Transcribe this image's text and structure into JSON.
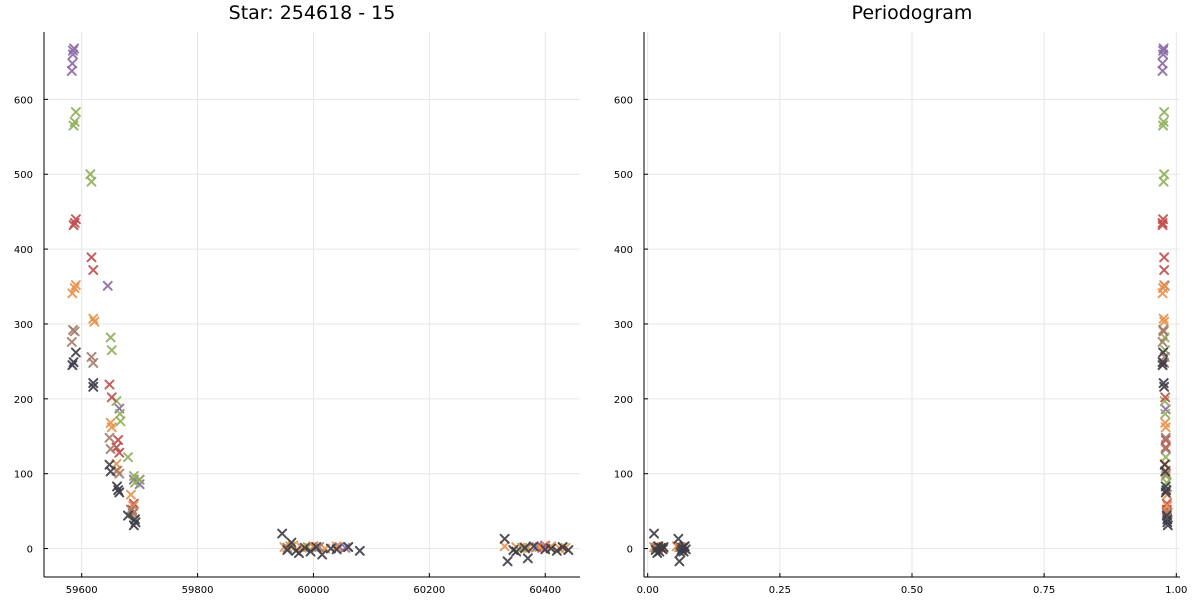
{
  "palette": {
    "purple": "#8a69a8",
    "green": "#8fb05a",
    "red": "#c14c4c",
    "orange": "#e8914a",
    "brown": "#a57c6a",
    "dark": "#3c3c46"
  },
  "chart_data": [
    {
      "type": "scatter",
      "title": "Star: 254618 - 15",
      "xlabel": "",
      "ylabel": "",
      "xlim": [
        59535,
        60460
      ],
      "ylim": [
        -38,
        690
      ],
      "xticks": [
        59600,
        59800,
        60000,
        60200,
        60400
      ],
      "xtick_labels": [
        "59600",
        "59800",
        "60000",
        "60200",
        "60400"
      ],
      "yticks": [
        0,
        100,
        200,
        300,
        400,
        500,
        600
      ],
      "ytick_labels": [
        "0",
        "100",
        "200",
        "300",
        "400",
        "500",
        "600"
      ],
      "grid": true,
      "marker": "x",
      "series": [
        {
          "color": "purple",
          "points": [
            [
              59585,
              665
            ],
            [
              59587,
              668
            ],
            [
              59585,
              660
            ],
            [
              59584,
              648
            ],
            [
              59583,
              638
            ],
            [
              59645,
              351
            ],
            [
              59690,
              92
            ],
            [
              59700,
              86
            ],
            [
              59700,
              92
            ],
            [
              59665,
              187
            ],
            [
              60045,
              2
            ],
            [
              60055,
              1
            ],
            [
              60385,
              2
            ],
            [
              60400,
              4
            ]
          ]
        },
        {
          "color": "green",
          "points": [
            [
              59590,
              583
            ],
            [
              59588,
              570
            ],
            [
              59586,
              565
            ],
            [
              59615,
              500
            ],
            [
              59617,
              490
            ],
            [
              59650,
              282
            ],
            [
              59652,
              265
            ],
            [
              59660,
              197
            ],
            [
              59666,
              180
            ],
            [
              59667,
              170
            ],
            [
              59680,
              122
            ],
            [
              59690,
              97
            ],
            [
              59692,
              88
            ],
            [
              59700,
              92
            ],
            [
              59960,
              3
            ],
            [
              59990,
              2
            ],
            [
              60360,
              1
            ],
            [
              60430,
              2
            ]
          ]
        },
        {
          "color": "red",
          "points": [
            [
              59590,
              440
            ],
            [
              59588,
              435
            ],
            [
              59586,
              432
            ],
            [
              59617,
              389
            ],
            [
              59620,
              372
            ],
            [
              59648,
              219
            ],
            [
              59652,
              202
            ],
            [
              59663,
              145
            ],
            [
              59660,
              135
            ],
            [
              59665,
              128
            ],
            [
              59687,
              52
            ],
            [
              59690,
              60
            ],
            [
              60000,
              3
            ],
            [
              60395,
              1
            ]
          ]
        },
        {
          "color": "orange",
          "points": [
            [
              59590,
              352
            ],
            [
              59588,
              348
            ],
            [
              59584,
              341
            ],
            [
              59620,
              307
            ],
            [
              59622,
              303
            ],
            [
              59650,
              168
            ],
            [
              59652,
              162
            ],
            [
              59660,
              113
            ],
            [
              59662,
              104
            ],
            [
              59685,
              72
            ],
            [
              59689,
              57
            ],
            [
              59690,
              48
            ],
            [
              59950,
              2
            ],
            [
              59965,
              4
            ],
            [
              59980,
              1
            ],
            [
              60000,
              3
            ],
            [
              60020,
              0
            ],
            [
              60040,
              3
            ],
            [
              60060,
              2
            ],
            [
              60330,
              3
            ],
            [
              60350,
              2
            ],
            [
              60370,
              1
            ],
            [
              60390,
              2
            ],
            [
              60410,
              3
            ],
            [
              60425,
              0
            ],
            [
              60435,
              1
            ]
          ]
        },
        {
          "color": "brown",
          "points": [
            [
              59585,
              292
            ],
            [
              59588,
              290
            ],
            [
              59583,
              276
            ],
            [
              59617,
              256
            ],
            [
              59620,
              248
            ],
            [
              59648,
              148
            ],
            [
              59650,
              133
            ],
            [
              59660,
              104
            ],
            [
              59665,
              100
            ],
            [
              59685,
              52
            ],
            [
              59688,
              47
            ],
            [
              59955,
              1
            ],
            [
              60010,
              2
            ],
            [
              60365,
              0
            ]
          ]
        },
        {
          "color": "dark",
          "points": [
            [
              59590,
              262
            ],
            [
              59586,
              249
            ],
            [
              59584,
              245
            ],
            [
              59620,
              221
            ],
            [
              59620,
              216
            ],
            [
              59648,
              112
            ],
            [
              59650,
              103
            ],
            [
              59661,
              83
            ],
            [
              59663,
              78
            ],
            [
              59665,
              75
            ],
            [
              59680,
              44
            ],
            [
              59692,
              39
            ],
            [
              59693,
              35
            ],
            [
              59690,
              31
            ],
            [
              59946,
              20
            ],
            [
              59955,
              -2
            ],
            [
              59962,
              8
            ],
            [
              59970,
              -3
            ],
            [
              59975,
              -6
            ],
            [
              59985,
              1
            ],
            [
              59995,
              -4
            ],
            [
              60005,
              2
            ],
            [
              60015,
              -8
            ],
            [
              60030,
              0
            ],
            [
              60040,
              -1
            ],
            [
              60060,
              2
            ],
            [
              60080,
              -3
            ],
            [
              60330,
              13
            ],
            [
              60335,
              -17
            ],
            [
              60345,
              -2
            ],
            [
              60350,
              -4
            ],
            [
              60365,
              1
            ],
            [
              60370,
              -13
            ],
            [
              60380,
              3
            ],
            [
              60400,
              -1
            ],
            [
              60410,
              0
            ],
            [
              60420,
              -3
            ],
            [
              60430,
              2
            ],
            [
              60440,
              -2
            ]
          ]
        }
      ]
    },
    {
      "type": "scatter",
      "title": "Periodogram",
      "xlabel": "",
      "ylabel": "",
      "xlim": [
        -0.007,
        1.007
      ],
      "ylim": [
        -38,
        690
      ],
      "xticks": [
        0.0,
        0.25,
        0.5,
        0.75,
        1.0
      ],
      "xtick_labels": [
        "0.00",
        "0.25",
        "0.50",
        "0.75",
        "1.00"
      ],
      "yticks": [
        0,
        100,
        200,
        300,
        400,
        500,
        600
      ],
      "ytick_labels": [
        "0",
        "100",
        "200",
        "300",
        "400",
        "500",
        "600"
      ],
      "grid": true,
      "marker": "x",
      "series": [
        {
          "color": "purple",
          "points": [
            [
              0.975,
              665
            ],
            [
              0.976,
              668
            ],
            [
              0.975,
              660
            ],
            [
              0.974,
              648
            ],
            [
              0.974,
              638
            ],
            [
              0.978,
              351
            ],
            [
              0.98,
              186
            ],
            [
              0.02,
              2
            ],
            [
              0.065,
              1
            ]
          ]
        },
        {
          "color": "green",
          "points": [
            [
              0.977,
              583
            ],
            [
              0.976,
              570
            ],
            [
              0.975,
              565
            ],
            [
              0.977,
              500
            ],
            [
              0.976,
              490
            ],
            [
              0.978,
              282
            ],
            [
              0.979,
              265
            ],
            [
              0.978,
              197
            ],
            [
              0.979,
              180
            ],
            [
              0.98,
              122
            ],
            [
              0.98,
              97
            ],
            [
              0.982,
              88
            ],
            [
              0.018,
              3
            ],
            [
              0.06,
              2
            ]
          ]
        },
        {
          "color": "red",
          "points": [
            [
              0.975,
              440
            ],
            [
              0.974,
              435
            ],
            [
              0.974,
              432
            ],
            [
              0.977,
              389
            ],
            [
              0.977,
              372
            ],
            [
              0.979,
              202
            ],
            [
              0.98,
              145
            ],
            [
              0.98,
              135
            ],
            [
              0.982,
              60
            ],
            [
              0.982,
              52
            ],
            [
              0.02,
              1
            ],
            [
              0.068,
              2
            ]
          ]
        },
        {
          "color": "orange",
          "points": [
            [
              0.977,
              352
            ],
            [
              0.975,
              348
            ],
            [
              0.974,
              341
            ],
            [
              0.976,
              307
            ],
            [
              0.977,
              303
            ],
            [
              0.979,
              168
            ],
            [
              0.98,
              162
            ],
            [
              0.979,
              113
            ],
            [
              0.98,
              104
            ],
            [
              0.983,
              72
            ],
            [
              0.983,
              57
            ],
            [
              0.984,
              48
            ],
            [
              0.012,
              2
            ],
            [
              0.02,
              3
            ],
            [
              0.025,
              1
            ],
            [
              0.03,
              0
            ],
            [
              0.055,
              3
            ],
            [
              0.06,
              2
            ],
            [
              0.065,
              1
            ],
            [
              0.07,
              3
            ]
          ]
        },
        {
          "color": "brown",
          "points": [
            [
              0.975,
              292
            ],
            [
              0.976,
              290
            ],
            [
              0.974,
              276
            ],
            [
              0.978,
              256
            ],
            [
              0.977,
              248
            ],
            [
              0.98,
              148
            ],
            [
              0.98,
              133
            ],
            [
              0.981,
              100
            ],
            [
              0.982,
              47
            ],
            [
              0.015,
              1
            ],
            [
              0.062,
              2
            ]
          ]
        },
        {
          "color": "dark",
          "points": [
            [
              0.975,
              262
            ],
            [
              0.974,
              249
            ],
            [
              0.974,
              245
            ],
            [
              0.976,
              221
            ],
            [
              0.977,
              216
            ],
            [
              0.978,
              112
            ],
            [
              0.979,
              103
            ],
            [
              0.98,
              83
            ],
            [
              0.981,
              78
            ],
            [
              0.98,
              75
            ],
            [
              0.982,
              44
            ],
            [
              0.983,
              39
            ],
            [
              0.983,
              35
            ],
            [
              0.984,
              31
            ],
            [
              0.012,
              20
            ],
            [
              0.015,
              -2
            ],
            [
              0.018,
              -6
            ],
            [
              0.02,
              3
            ],
            [
              0.022,
              -4
            ],
            [
              0.025,
              1
            ],
            [
              0.028,
              -1
            ],
            [
              0.03,
              2
            ],
            [
              0.058,
              13
            ],
            [
              0.06,
              -17
            ],
            [
              0.062,
              -5
            ],
            [
              0.064,
              -2
            ],
            [
              0.066,
              1
            ],
            [
              0.068,
              -4
            ],
            [
              0.07,
              3
            ],
            [
              0.072,
              -1
            ]
          ]
        }
      ]
    }
  ]
}
